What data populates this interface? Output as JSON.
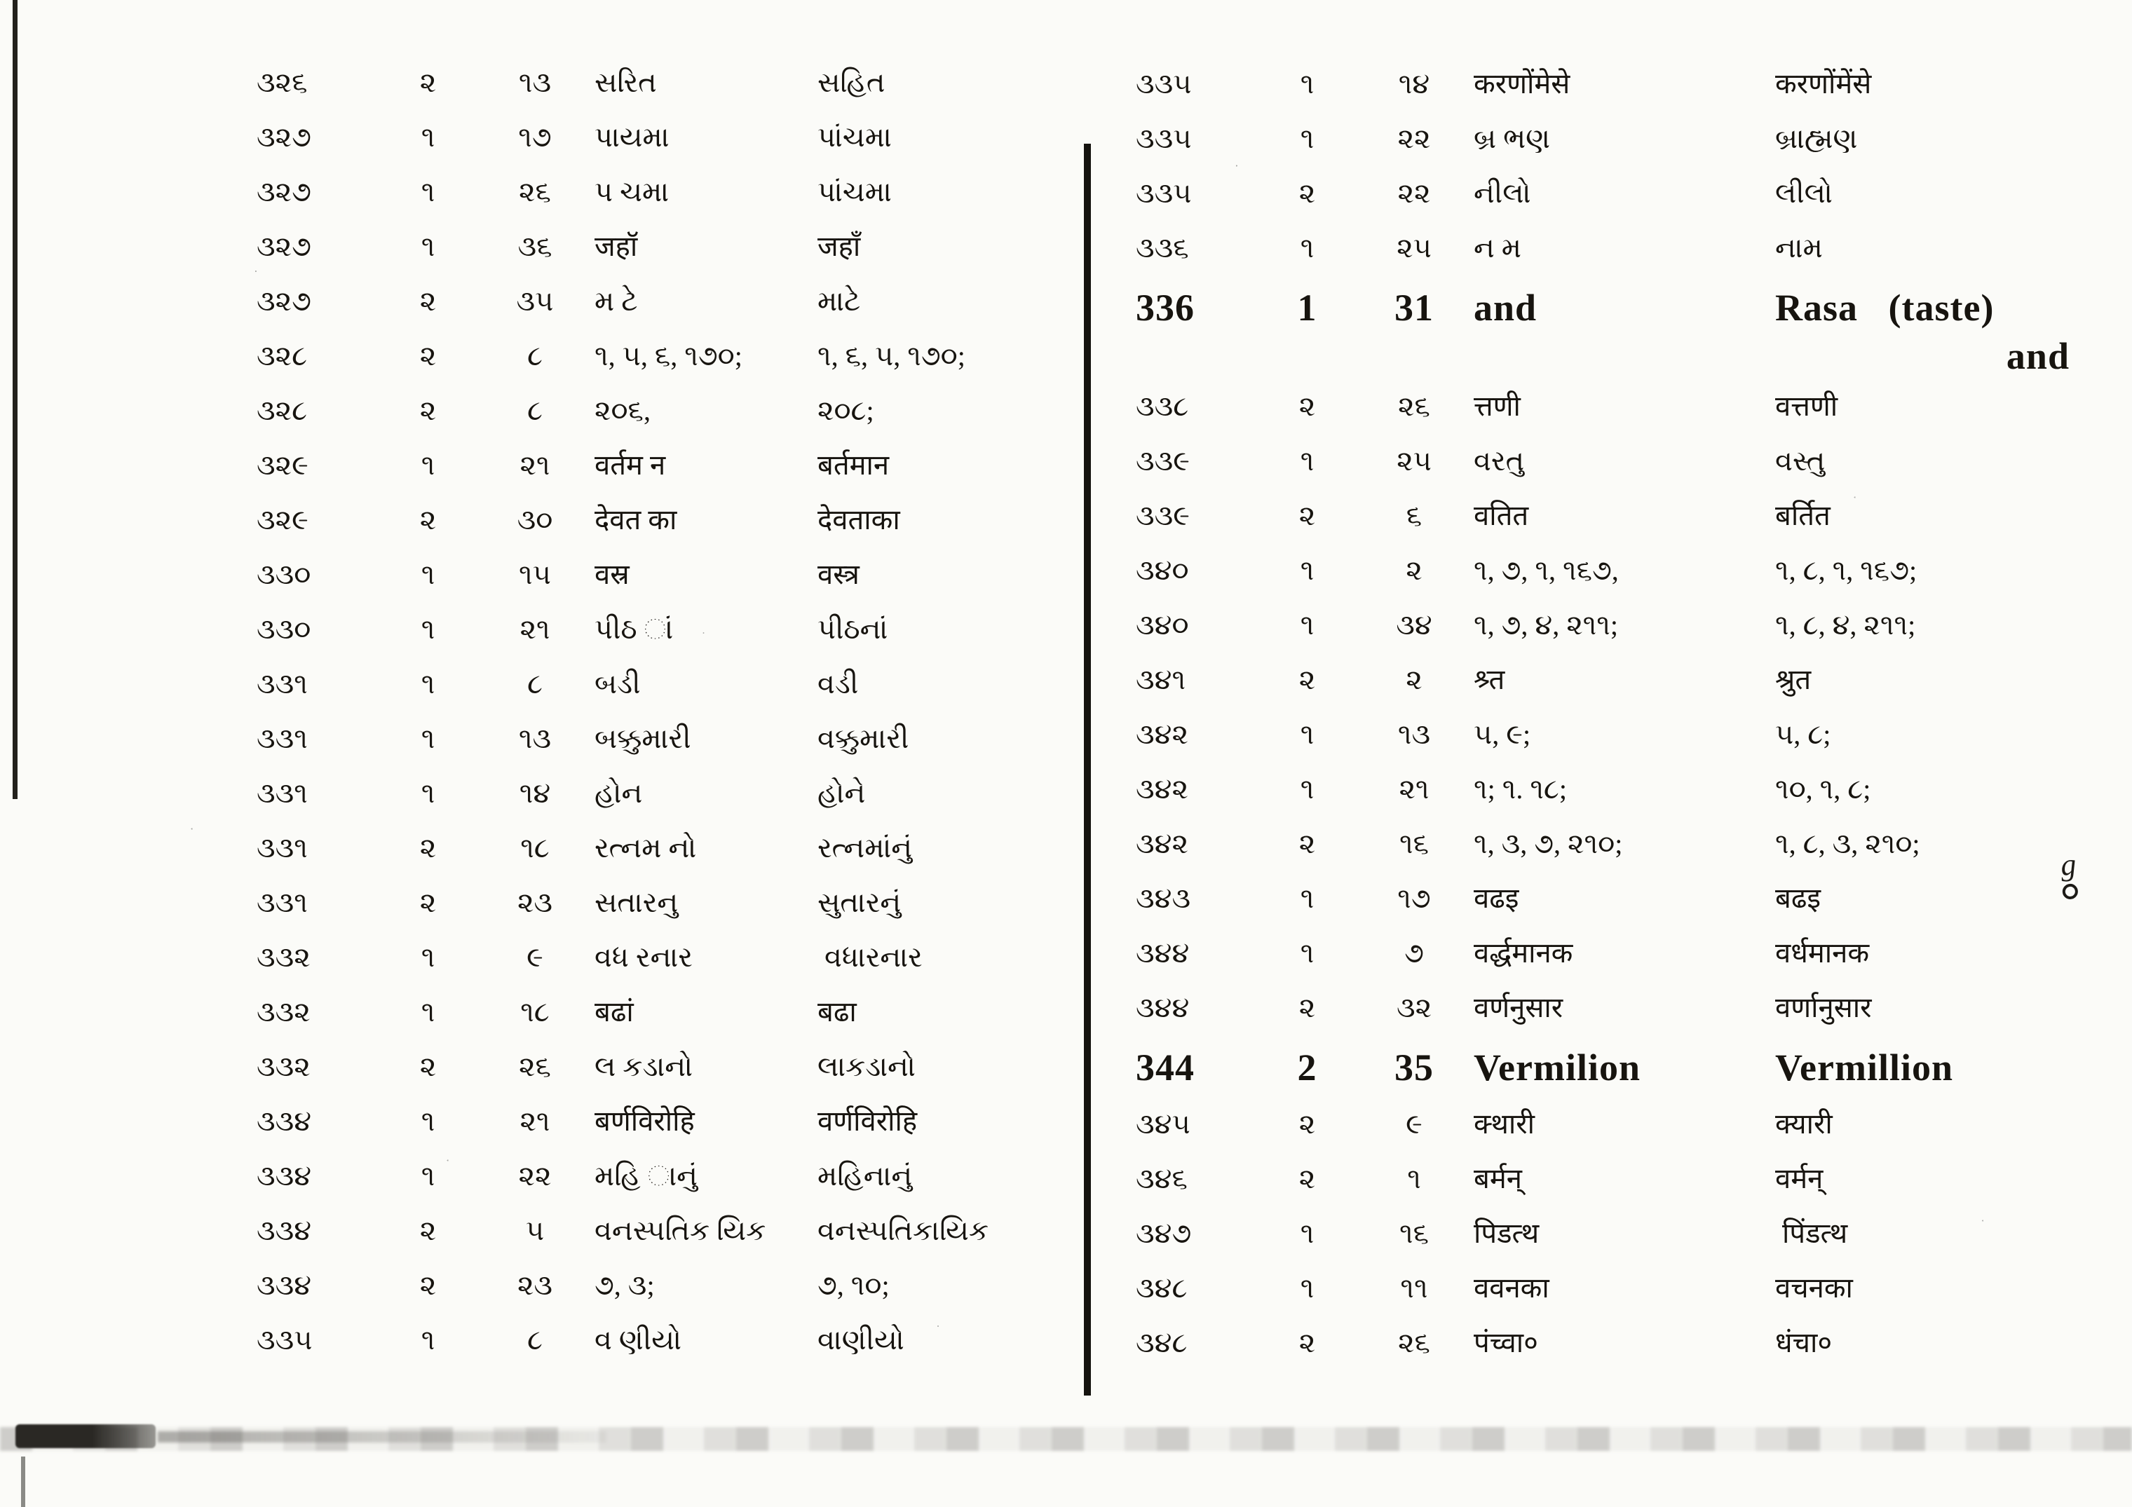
{
  "page": {
    "kind": "scanned errata table",
    "ink_color": "#17140f",
    "paper_color": "#fbfbf8",
    "marginal_mark": "g"
  },
  "left_table": {
    "rows": [
      {
        "page": "૩૨૬",
        "col": "૨",
        "line": "૧૩",
        "wrong": "સરિત",
        "correct": "સહિત"
      },
      {
        "page": "૩૨૭",
        "col": "૧",
        "line": "૧૭",
        "wrong": "પાયમા",
        "correct": "પાંચમા"
      },
      {
        "page": "૩૨૭",
        "col": "૧",
        "line": "૨૬",
        "wrong": "પ ચમા",
        "correct": "પાંચમા"
      },
      {
        "page": "૩૨૭",
        "col": "૧",
        "line": "૩૬",
        "wrong": "जहॉ",
        "correct": "जहाँ"
      },
      {
        "page": "૩૨૭",
        "col": "૨",
        "line": "૩૫",
        "wrong": "મ ટે",
        "correct": "માટે"
      },
      {
        "page": "૩૨૮",
        "col": "૨",
        "line": "૮",
        "wrong": "૧, ૫, ૬, ૧૭૦;",
        "correct": "૧, ૬, ૫, ૧૭૦;"
      },
      {
        "page": "૩૨૮",
        "col": "૨",
        "line": "૮",
        "wrong": "૨૦૬,",
        "correct": "૨૦૮;"
      },
      {
        "page": "૩૨૯",
        "col": "૧",
        "line": "૨૧",
        "wrong": "वर्तम न",
        "correct": "बर्तमान"
      },
      {
        "page": "૩૨૯",
        "col": "૨",
        "line": "૩૦",
        "wrong": "देवत का",
        "correct": "देवताका"
      },
      {
        "page": "૩૩૦",
        "col": "૧",
        "line": "૧૫",
        "wrong": "वस्र",
        "correct": "वस्त्र"
      },
      {
        "page": "૩૩૦",
        "col": "૧",
        "line": "૨૧",
        "wrong": "પીઠ ાં",
        "correct": "પીઠનાં"
      },
      {
        "page": "૩૩૧",
        "col": "૧",
        "line": "૮",
        "wrong": "બડી",
        "correct": "વડી"
      },
      {
        "page": "૩૩૧",
        "col": "૧",
        "line": "૧૩",
        "wrong": "બક્કુમારી",
        "correct": "વક્કુમારી"
      },
      {
        "page": "૩૩૧",
        "col": "૧",
        "line": "૧૪",
        "wrong": "હોન",
        "correct": "હોને"
      },
      {
        "page": "૩૩૧",
        "col": "૨",
        "line": "૧૮",
        "wrong": "રત્નમ નો",
        "correct": "રત્નમાંનું"
      },
      {
        "page": "૩૩૧",
        "col": "૨",
        "line": "૨૩",
        "wrong": "સતારનુ",
        "correct": "સુતારનું"
      },
      {
        "page": "૩૩૨",
        "col": "૧",
        "line": "૯",
        "wrong": "વધ રનાર",
        "correct": " વધારનાર"
      },
      {
        "page": "૩૩૨",
        "col": "૧",
        "line": "૧૮",
        "wrong": "बढां",
        "correct": "बढा"
      },
      {
        "page": "૩૩૨",
        "col": "૨",
        "line": "૨૬",
        "wrong": "લ કડાનો",
        "correct": "લાકડાનો"
      },
      {
        "page": "૩૩૪",
        "col": "૧",
        "line": "૨૧",
        "wrong": "बर्णविरोहि",
        "correct": "वर्णविरोहि"
      },
      {
        "page": "૩૩૪",
        "col": "૧",
        "line": "૨૨",
        "wrong": "મહિ ાનું",
        "correct": "મહિનાનું"
      },
      {
        "page": "૩૩૪",
        "col": "૨",
        "line": "૫",
        "wrong": "વનસ્પતિક યિક",
        "correct": "વનસ્પતિકાયિક"
      },
      {
        "page": "૩૩૪",
        "col": "૨",
        "line": "૨૩",
        "wrong": "૭, ૩;",
        "correct": "૭, ૧૦;"
      },
      {
        "page": "૩૩૫",
        "col": "૧",
        "line": "૮",
        "wrong": "વ ણીયો",
        "correct": "વાણીયો"
      }
    ]
  },
  "right_table": {
    "rows": [
      {
        "page": "૩૩૫",
        "col": "૧",
        "line": "૧૪",
        "wrong": "करणोंमेसे",
        "correct": "करणोंमेंसे"
      },
      {
        "page": "૩૩૫",
        "col": "૧",
        "line": "૨૨",
        "wrong": "બ્ર ભણ",
        "correct": "બ્રાહ્મણ"
      },
      {
        "page": "૩૩૫",
        "col": "૨",
        "line": "૨૨",
        "wrong": "નીલો",
        "correct": "લીલો"
      },
      {
        "page": "૩૩૬",
        "col": "૧",
        "line": "૨૫",
        "wrong": "ન મ",
        "correct": "નામ"
      },
      {
        "page": "336",
        "col": "1",
        "line": "31",
        "wrong": "and",
        "correct": "Rasa   (taste)",
        "correct_cont": "and",
        "latin": true,
        "two_line": true
      },
      {
        "page": "૩૩૮",
        "col": "૨",
        "line": "૨૬",
        "wrong": "त्तणी",
        "correct": "वत्तणी"
      },
      {
        "page": "૩૩૯",
        "col": "૧",
        "line": "૨૫",
        "wrong": "વરતુ",
        "correct": "વસ્તુ"
      },
      {
        "page": "૩૩૯",
        "col": "૨",
        "line": "૬",
        "wrong": "वतित",
        "correct": "बर्तित"
      },
      {
        "page": "૩૪૦",
        "col": "૧",
        "line": "૨",
        "wrong": "૧, ૭, ૧, ૧૬૭,",
        "correct": "૧, ૮, ૧, ૧૬૭;"
      },
      {
        "page": "૩૪૦",
        "col": "૧",
        "line": "૩૪",
        "wrong": "૧, ૭, ૪, ૨૧૧;",
        "correct": "૧, ૮, ૪, ૨૧૧;"
      },
      {
        "page": "૩૪૧",
        "col": "૨",
        "line": "૨",
        "wrong": "श्र्त",
        "correct": "श्रुत"
      },
      {
        "page": "૩૪૨",
        "col": "૧",
        "line": "૧૩",
        "wrong": "૫, ૯;",
        "correct": "૫, ૮;"
      },
      {
        "page": "૩૪૨",
        "col": "૧",
        "line": "૨૧",
        "wrong": "૧; ૧. ૧૮;",
        "correct": "૧૦, ૧, ૮;"
      },
      {
        "page": "૩૪૨",
        "col": "૨",
        "line": "૧૬",
        "wrong": "૧, ૩, ૭, ૨૧૦;",
        "correct": "૧, ૮, ૩, ૨૧૦;"
      },
      {
        "page": "૩૪૩",
        "col": "૧",
        "line": "૧૭",
        "wrong": "वढइ",
        "correct": "बढइ"
      },
      {
        "page": "૩૪૪",
        "col": "૧",
        "line": "૭",
        "wrong": "वर्द्धमानक",
        "correct": "वर्धमानक"
      },
      {
        "page": "૩૪૪",
        "col": "૨",
        "line": "૩૨",
        "wrong": "वर्णनुसार",
        "correct": "वर्णानुसार"
      },
      {
        "page": "344",
        "col": "2",
        "line": "35",
        "wrong": "Vermilion",
        "correct": "Vermillion",
        "latin": true
      },
      {
        "page": "૩૪૫",
        "col": "૨",
        "line": "૯",
        "wrong": "क्थारी",
        "correct": "क्यारी"
      },
      {
        "page": "૩૪૬",
        "col": "૨",
        "line": "૧",
        "wrong": "बर्मन्",
        "correct": "वर्मन्"
      },
      {
        "page": "૩૪૭",
        "col": "૧",
        "line": "૧૬",
        "wrong": "पिडत्थ",
        "correct": " पिंडत्थ"
      },
      {
        "page": "૩૪૮",
        "col": "૧",
        "line": "૧૧",
        "wrong": "ववनका",
        "correct": "वचनका"
      },
      {
        "page": "૩૪૮",
        "col": "૨",
        "line": "૨૬",
        "wrong": "पंच्वा०",
        "correct": "धंचा०"
      }
    ]
  }
}
